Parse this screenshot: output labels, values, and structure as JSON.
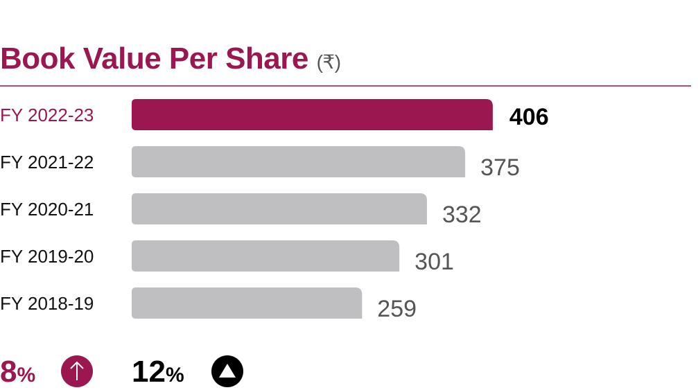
{
  "chart_data": {
    "type": "bar",
    "orientation": "horizontal",
    "title": "Book Value Per Share",
    "unit": "(₹)",
    "categories": [
      "FY 2022-23",
      "FY 2021-22",
      "FY 2020-21",
      "FY 2019-20",
      "FY 2018-19"
    ],
    "values": [
      406,
      375,
      332,
      301,
      259
    ],
    "highlight_index": 0,
    "colors": {
      "highlight": "#9b1750",
      "default": "#bfbfc1",
      "label": "#555555",
      "highlight_label": "#000000"
    },
    "grid": false
  },
  "footer": {
    "growth1": {
      "value": "8",
      "unit": "%",
      "icon": "arrow-up-circle-icon",
      "color": "#9b1750"
    },
    "growth2": {
      "value": "12",
      "unit": "%",
      "icon": "triangle-up-circle-icon",
      "color": "#000000"
    }
  }
}
